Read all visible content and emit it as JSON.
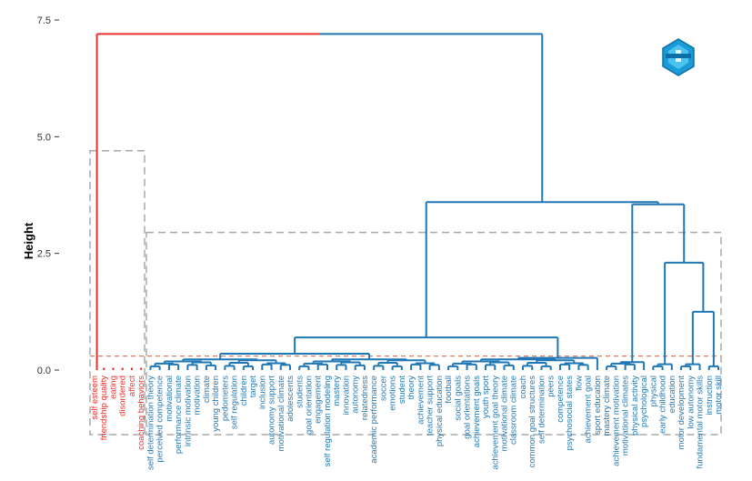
{
  "chart_data": {
    "type": "dendrogram",
    "ylabel": "Height",
    "ylim": [
      0,
      7.5
    ],
    "y_ticks": [
      {
        "value": 0,
        "label": "0.0"
      },
      {
        "value": 2.5,
        "label": "2.5"
      },
      {
        "value": 5,
        "label": "5.0"
      },
      {
        "value": 7.5,
        "label": "7.5"
      }
    ],
    "cut_height": 0.3,
    "root_height": 7.2,
    "colors": {
      "cluster_1": "#e8302a",
      "cluster_2": "#1f77b4",
      "guide": "#a8a8a8",
      "cut_line": "#e07a5f"
    },
    "logo_icon": "bibliometrix-logo-icon",
    "clusters": [
      {
        "name": "cluster-1",
        "color": "#e8302a",
        "merge_height": 4.7,
        "labels": [
          "self esteem",
          "friendship quality",
          "eating",
          "disordered",
          "affect",
          "coaching behaviors"
        ]
      },
      {
        "name": "cluster-2",
        "color": "#1f77b4",
        "merge_height": 2.95,
        "labels": [
          "self determination theory",
          "perceived competence",
          "motivational",
          "performance climate",
          "intrinsic motivation",
          "motivation",
          "climate",
          "young children",
          "pedometers",
          "self regulation",
          "children",
          "target",
          "inclusion",
          "autonomy support",
          "motivational climate",
          "adolescents",
          "students",
          "goal orientation",
          "engagement",
          "self regulation modeling",
          "mastery",
          "innovation",
          "autonomy",
          "relatedness",
          "academic performance",
          "soccer",
          "emotions",
          "student",
          "theory",
          "achievement",
          "teacher support",
          "physical education",
          "football",
          "social goals",
          "goal orientations",
          "achievement goals",
          "youth sport",
          "achievement goal theory",
          "motivational climate",
          "classroom climate",
          "coach",
          "common goal structures",
          "self determination",
          "peers",
          "competence",
          "psychosocial states",
          "flow",
          "achievement goal",
          "sport education",
          "mastery climate",
          "achievement motivation",
          "motivational climates",
          "physical activity",
          "psychological",
          "physical",
          "early childhood",
          "education",
          "motor development",
          "low autonomy",
          "fundamental motor skills",
          "instruction",
          "motor skill"
        ]
      }
    ],
    "merges": {
      "root": {
        "height": 7.2
      },
      "blue_top": {
        "height": 3.6
      },
      "blue_left": {
        "height": 0.7
      },
      "blue_right": {
        "height": 2.3
      },
      "right_a": {
        "height": 1.25
      },
      "right_b": {
        "height": 0.8
      },
      "left_a": {
        "height": 0.3
      },
      "left_b": {
        "height": 0.3
      },
      "left_c": {
        "height": 0.27
      }
    }
  }
}
